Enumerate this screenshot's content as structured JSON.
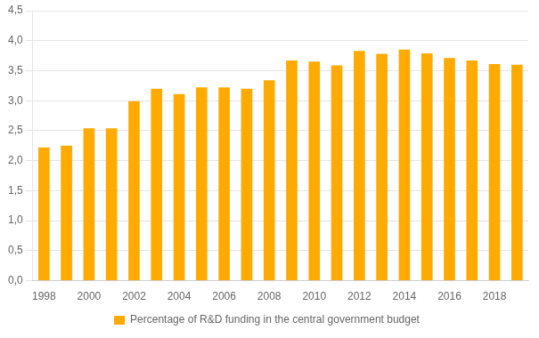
{
  "chart_data": {
    "type": "bar",
    "categories": [
      "1998",
      null,
      "2000",
      null,
      "2002",
      null,
      "2004",
      null,
      "2006",
      null,
      "2008",
      null,
      "2010",
      null,
      "2012",
      null,
      "2014",
      null,
      "2016",
      null,
      "2018",
      null
    ],
    "series": [
      {
        "name": "Percentage of R&D funding in the central government budget",
        "color": "#FFAA00",
        "values": [
          2.22,
          2.25,
          2.54,
          2.54,
          2.99,
          3.2,
          3.11,
          3.22,
          3.22,
          3.2,
          3.34,
          3.67,
          3.65,
          3.59,
          3.83,
          3.78,
          3.85,
          3.79,
          3.71,
          3.67,
          3.61,
          3.6
        ]
      }
    ],
    "ylim": [
      0,
      4.5
    ],
    "yticks": [
      {
        "value": 0.0,
        "label": "0,0"
      },
      {
        "value": 0.5,
        "label": "0,5"
      },
      {
        "value": 1.0,
        "label": "1,0"
      },
      {
        "value": 1.5,
        "label": "1,5"
      },
      {
        "value": 2.0,
        "label": "2,0"
      },
      {
        "value": 2.5,
        "label": "2,5"
      },
      {
        "value": 3.0,
        "label": "3,0"
      },
      {
        "value": 3.5,
        "label": "3,5"
      },
      {
        "value": 4.0,
        "label": "4,0"
      },
      {
        "value": 4.5,
        "label": "4,5"
      }
    ],
    "grid": true,
    "legend": "bottom"
  }
}
